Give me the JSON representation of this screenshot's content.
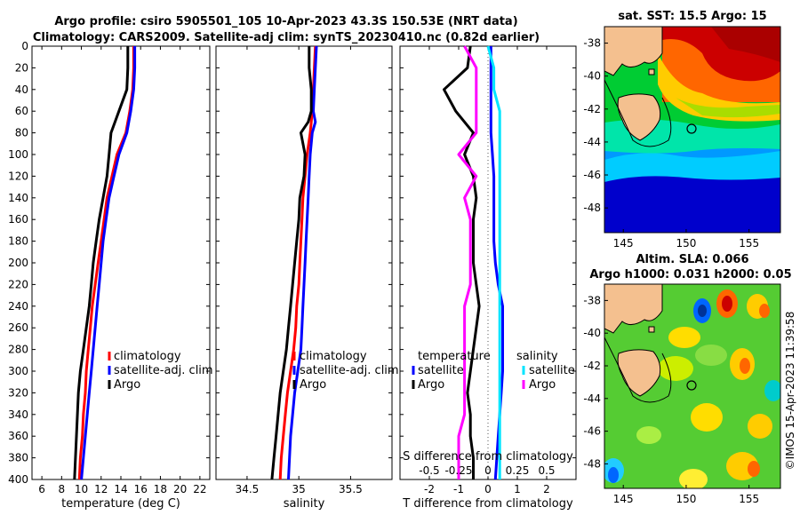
{
  "title_line1": "Argo profile: csiro 5905501_105 10-Apr-2023 43.3S 150.53E (NRT data)",
  "title_line2": "Climatology: CARS2009. Satellite-adj clim: synTS_20230410.nc (0.82d earlier)",
  "credit": "©IMOS 15-Apr-2023 11:39:58",
  "colors": {
    "climatology": "#ff0000",
    "satellite": "#0000ff",
    "argo": "#000000",
    "sat_sal": "#00e5ff",
    "argo_sal": "#ff00ff"
  },
  "chart_data": [
    {
      "type": "line",
      "name": "temperature-panel",
      "xlabel": "temperature (deg C)",
      "ylabel": "",
      "xlim": [
        5,
        23
      ],
      "ylim": [
        400,
        0
      ],
      "xticks": [
        "6",
        "8",
        "10",
        "12",
        "14",
        "16",
        "18",
        "20",
        "22"
      ],
      "yticks": [
        "0",
        "20",
        "40",
        "60",
        "80",
        "100",
        "120",
        "140",
        "160",
        "180",
        "200",
        "220",
        "240",
        "260",
        "280",
        "300",
        "320",
        "340",
        "360",
        "380",
        "400"
      ],
      "depth": [
        0,
        20,
        40,
        60,
        80,
        100,
        120,
        140,
        160,
        180,
        200,
        220,
        240,
        260,
        280,
        300,
        320,
        340,
        360,
        380,
        400
      ],
      "series": [
        {
          "name": "climatology",
          "values": [
            15.3,
            15.3,
            15.2,
            14.9,
            14.5,
            13.6,
            13.1,
            12.6,
            12.3,
            12.0,
            11.7,
            11.4,
            11.1,
            10.9,
            10.7,
            10.5,
            10.4,
            10.2,
            10.1,
            9.9,
            9.8
          ]
        },
        {
          "name": "satellite-adj. clim",
          "values": [
            15.4,
            15.4,
            15.3,
            15.0,
            14.6,
            13.8,
            13.3,
            12.8,
            12.5,
            12.2,
            12.0,
            11.8,
            11.6,
            11.4,
            11.2,
            11.0,
            10.8,
            10.6,
            10.4,
            10.2,
            10.0
          ]
        },
        {
          "name": "Argo",
          "values": [
            14.7,
            14.7,
            14.6,
            13.8,
            13.0,
            12.8,
            12.6,
            12.2,
            11.8,
            11.5,
            11.2,
            11.0,
            10.8,
            10.5,
            10.2,
            9.9,
            9.7,
            9.6,
            9.5,
            9.4,
            9.3
          ]
        }
      ],
      "legend": [
        "climatology",
        "satellite-adj. clim",
        "Argo"
      ]
    },
    {
      "type": "line",
      "name": "salinity-panel",
      "xlabel": "salinity",
      "ylabel": "",
      "xlim": [
        34.2,
        35.9
      ],
      "ylim": [
        400,
        0
      ],
      "xticks": [
        "34.5",
        "35",
        "35.5"
      ],
      "depth": [
        0,
        20,
        40,
        60,
        70,
        80,
        100,
        120,
        140,
        160,
        180,
        200,
        220,
        240,
        260,
        280,
        300,
        320,
        340,
        360,
        380,
        400
      ],
      "series": [
        {
          "name": "climatology",
          "values": [
            35.16,
            35.15,
            35.14,
            35.13,
            35.12,
            35.11,
            35.08,
            35.06,
            35.04,
            35.03,
            35.02,
            35.01,
            35.0,
            34.98,
            34.97,
            34.95,
            34.92,
            34.89,
            34.87,
            34.85,
            34.83,
            34.82
          ]
        },
        {
          "name": "satellite-adj. clim",
          "values": [
            35.17,
            35.16,
            35.15,
            35.14,
            35.16,
            35.13,
            35.11,
            35.1,
            35.09,
            35.08,
            35.07,
            35.06,
            35.05,
            35.04,
            35.03,
            35.02,
            34.99,
            34.96,
            34.94,
            34.92,
            34.91,
            34.9
          ]
        },
        {
          "name": "Argo",
          "values": [
            35.1,
            35.1,
            35.12,
            35.12,
            35.09,
            35.02,
            35.06,
            35.05,
            35.01,
            35.0,
            34.98,
            34.96,
            34.94,
            34.92,
            34.9,
            34.88,
            34.85,
            34.82,
            34.8,
            34.78,
            34.76,
            34.74
          ]
        }
      ],
      "legend": [
        "climatology",
        "satellite-adj. clim",
        "Argo"
      ]
    },
    {
      "type": "line",
      "name": "difference-panel",
      "xlabel": "T difference from climatology",
      "xlabel_top": "S difference from climatology",
      "xlim": [
        -3,
        3
      ],
      "ylim": [
        400,
        0
      ],
      "xticks": [
        "-2",
        "-1",
        "0",
        "1",
        "2"
      ],
      "xticks_top": [
        "-0.5",
        "-0.25",
        "0",
        "0.25",
        "0.5"
      ],
      "depth": [
        0,
        20,
        40,
        60,
        80,
        100,
        120,
        140,
        160,
        180,
        200,
        220,
        240,
        260,
        280,
        300,
        320,
        340,
        360,
        380,
        400
      ],
      "series": [
        {
          "name": "temperature satellite",
          "values": [
            0.1,
            0.1,
            0.1,
            0.1,
            0.1,
            0.15,
            0.2,
            0.2,
            0.2,
            0.2,
            0.25,
            0.35,
            0.5,
            0.5,
            0.5,
            0.5,
            0.45,
            0.4,
            0.35,
            0.3,
            0.25
          ]
        },
        {
          "name": "temperature Argo",
          "values": [
            -0.6,
            -0.7,
            -1.5,
            -1.1,
            -0.5,
            -0.8,
            -0.5,
            -0.4,
            -0.5,
            -0.5,
            -0.5,
            -0.4,
            -0.3,
            -0.4,
            -0.5,
            -0.6,
            -0.7,
            -0.6,
            -0.6,
            -0.5,
            -0.5
          ]
        },
        {
          "name": "salinity satellite",
          "values": [
            0.0,
            0.05,
            0.05,
            0.1,
            0.1,
            0.1,
            0.1,
            0.1,
            0.1,
            0.1,
            0.1,
            0.1,
            0.1,
            0.1,
            0.1,
            0.1,
            0.1,
            0.1,
            0.1,
            0.1,
            0.1
          ]
        },
        {
          "name": "salinity Argo",
          "values": [
            -0.2,
            -0.1,
            -0.1,
            -0.1,
            -0.1,
            -0.25,
            -0.1,
            -0.2,
            -0.15,
            -0.15,
            -0.15,
            -0.15,
            -0.2,
            -0.2,
            -0.2,
            -0.2,
            -0.2,
            -0.2,
            -0.25,
            -0.25,
            -0.25
          ]
        }
      ],
      "legend_left_title": "temperature",
      "legend_right_title": "salinity",
      "legend_left": [
        "satellite",
        "Argo"
      ],
      "legend_right": [
        "satellite",
        "Argo"
      ]
    },
    {
      "type": "heatmap",
      "name": "sst-map",
      "title": "sat. SST: 15.5 Argo: 15",
      "xticks": [
        "145",
        "150",
        "155"
      ],
      "yticks": [
        "-38",
        "-40",
        "-42",
        "-44",
        "-46",
        "-48"
      ],
      "xlim": [
        143.5,
        157.5
      ],
      "ylim": [
        -49.5,
        -37
      ]
    },
    {
      "type": "heatmap",
      "name": "sla-map",
      "title_line1": "Altim. SLA: 0.066",
      "title_line2": "Argo h1000: 0.031 h2000: 0.05",
      "xticks": [
        "145",
        "150",
        "155"
      ],
      "yticks": [
        "-38",
        "-40",
        "-42",
        "-44",
        "-46",
        "-48"
      ],
      "xlim": [
        143.5,
        157.5
      ],
      "ylim": [
        -49.5,
        -37
      ]
    }
  ]
}
